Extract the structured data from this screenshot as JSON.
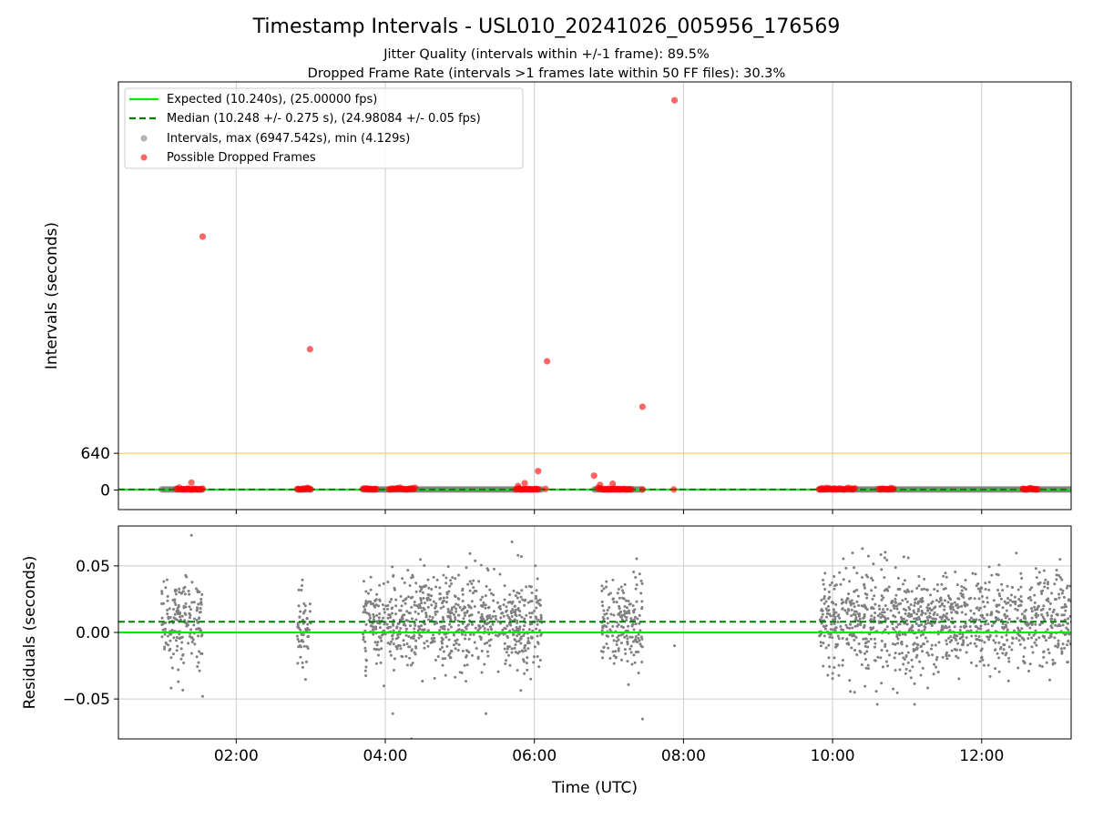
{
  "chart_data": {
    "type": "scatter",
    "title": "Timestamp Intervals - USL010_20241026_005956_176569",
    "subtitle_lines": [
      "Jitter Quality (intervals within +/-1 frame): 89.5%",
      "Dropped Frame Rate (intervals >1 frames late within 50 FF files): 30.3%"
    ],
    "xlabel": "Time (UTC)",
    "xlim_hours": [
      0.42,
      13.2
    ],
    "x_ticks": [
      {
        "value": 2,
        "label": "02:00"
      },
      {
        "value": 4,
        "label": "04:00"
      },
      {
        "value": 6,
        "label": "06:00"
      },
      {
        "value": 8,
        "label": "08:00"
      },
      {
        "value": 10,
        "label": "10:00"
      },
      {
        "value": 12,
        "label": "12:00"
      }
    ],
    "colors": {
      "expected": "#00ee00",
      "median": "#007f00",
      "threshold": "#ffcc66",
      "intervals": "#808080",
      "dropped": "#ff0000",
      "grid": "#cccccc"
    },
    "top_panel": {
      "ylabel": "Intervals (seconds)",
      "ylim": [
        -340,
        7100
      ],
      "y_ticks": [
        {
          "value": 0,
          "label": "0"
        },
        {
          "value": 640,
          "label": "640"
        }
      ],
      "threshold_line": 640,
      "expected": 10.24,
      "median": 10.248,
      "legend": {
        "placement": "upper-left",
        "entries": [
          {
            "kind": "solid-line",
            "label": "Expected (10.240s), (25.00000 fps)"
          },
          {
            "kind": "dashed-line",
            "label": "Median (10.248 +/- 0.275 s), (24.98084 +/- 0.05 fps)"
          },
          {
            "kind": "gray-marker",
            "label": "Intervals, max (6947.542s), min (4.129s)"
          },
          {
            "kind": "red-marker",
            "label": "Possible Dropped Frames"
          }
        ]
      },
      "interval_segments": [
        [
          1.0,
          1.55
        ],
        [
          2.82,
          3.0
        ],
        [
          3.7,
          6.1
        ],
        [
          6.8,
          7.45
        ],
        [
          9.82,
          13.2
        ]
      ],
      "dropped_clusters": [
        [
          1.2,
          1.55
        ],
        [
          2.82,
          3.0
        ],
        [
          3.7,
          3.88
        ],
        [
          4.05,
          4.4
        ],
        [
          5.75,
          6.05
        ],
        [
          6.85,
          7.3
        ],
        [
          9.82,
          10.3
        ],
        [
          10.62,
          10.82
        ],
        [
          12.55,
          12.75
        ]
      ],
      "dropped_outliers": [
        {
          "x": 1.55,
          "y": 4410
        },
        {
          "x": 2.99,
          "y": 2450
        },
        {
          "x": 6.17,
          "y": 2240
        },
        {
          "x": 7.45,
          "y": 1450
        },
        {
          "x": 7.88,
          "y": 6780
        },
        {
          "x": 6.05,
          "y": 330
        },
        {
          "x": 6.8,
          "y": 250
        },
        {
          "x": 1.4,
          "y": 130
        },
        {
          "x": 5.87,
          "y": 120
        },
        {
          "x": 5.78,
          "y": 70
        },
        {
          "x": 6.88,
          "y": 90
        },
        {
          "x": 7.05,
          "y": 110
        },
        {
          "x": 6.15,
          "y": 20
        },
        {
          "x": 7.87,
          "y": 10
        },
        {
          "x": 7.45,
          "y": 10
        }
      ]
    },
    "bottom_panel": {
      "ylabel": "Residuals (seconds)",
      "ylim": [
        -0.08,
        0.08
      ],
      "y_ticks": [
        {
          "value": 0.05,
          "label": "0.05"
        },
        {
          "value": 0.0,
          "label": "0.00"
        },
        {
          "value": -0.05,
          "label": "−0.05"
        }
      ],
      "expected_residual": 0.0,
      "median_residual": 0.008,
      "segments": [
        [
          1.0,
          1.55
        ],
        [
          2.82,
          3.0
        ],
        [
          3.7,
          6.1
        ],
        [
          6.9,
          7.45
        ],
        [
          9.82,
          13.2
        ]
      ],
      "extra_points": [
        {
          "x": 1.4,
          "y": 0.073
        },
        {
          "x": 1.55,
          "y": -0.048
        },
        {
          "x": 7.88,
          "y": -0.01
        },
        {
          "x": 4.35,
          "y": -0.08
        },
        {
          "x": 4.1,
          "y": -0.061
        },
        {
          "x": 5.35,
          "y": -0.061
        },
        {
          "x": 7.45,
          "y": -0.065
        },
        {
          "x": 5.7,
          "y": 0.068
        },
        {
          "x": 11.1,
          "y": -0.054
        },
        {
          "x": 10.6,
          "y": -0.054
        },
        {
          "x": 10.4,
          "y": 0.063
        },
        {
          "x": 13.05,
          "y": 0.055
        }
      ]
    }
  }
}
